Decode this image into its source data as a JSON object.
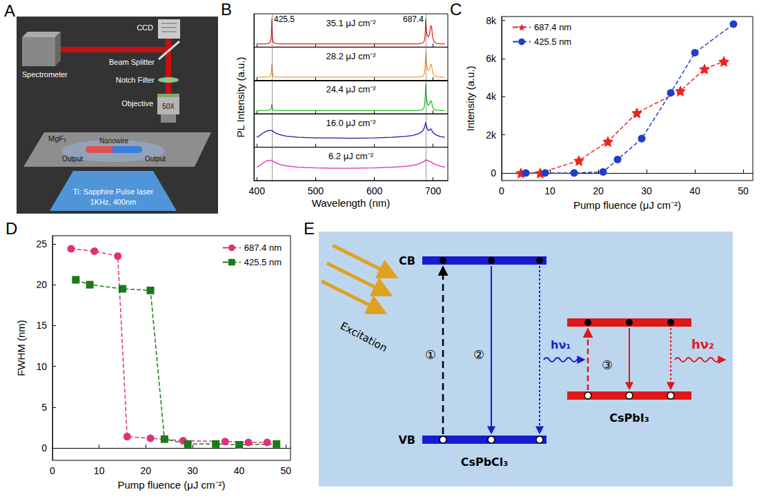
{
  "setup_diagram": {
    "panel_label": "A",
    "labels": {
      "ccd": "CCD",
      "beam_splitter": "Beam Splitter",
      "spectrometer": "Spectrometer",
      "notch_filter": "Notch Filter",
      "objective": "Objective",
      "magnification": "50X",
      "substrate": "MgF₂",
      "nanowire": "Nanowire",
      "output_left": "Output",
      "output_right": "Output",
      "laser": "Ti: Sapphire Pulse laser",
      "laser_specs": "1KHz, 400nm"
    }
  },
  "chart_data": [
    {
      "panel_label": "B",
      "type": "line",
      "x_label": "Wavelength (nm)",
      "y_label": "PL Intensity (a.u.)",
      "xlim": [
        395,
        725
      ],
      "xticks": [
        400,
        500,
        600,
        700
      ],
      "ylim": [
        0,
        1
      ],
      "tick_labels": "x",
      "grid": false,
      "annotations": [
        {
          "text": "425.5",
          "x": 425.5
        },
        {
          "text": "687.4",
          "x": 687.4
        }
      ],
      "x": [
        400,
        405,
        410,
        415,
        420,
        423,
        424.5,
        425.5,
        426.5,
        428,
        432,
        440,
        450,
        470,
        500,
        530,
        560,
        600,
        630,
        650,
        665,
        675,
        682,
        685,
        686.5,
        687.4,
        688.5,
        690,
        692,
        694,
        696,
        697.5,
        699,
        702,
        706,
        712,
        720
      ],
      "series": [
        {
          "name": "35.1 μJ cm⁻²",
          "color": "#e8251f",
          "values": [
            0.1,
            0.1,
            0.1,
            0.1,
            0.11,
            0.15,
            0.3,
            0.85,
            0.3,
            0.14,
            0.11,
            0.1,
            0.1,
            0.1,
            0.1,
            0.1,
            0.1,
            0.1,
            0.1,
            0.1,
            0.1,
            0.1,
            0.12,
            0.18,
            0.4,
            0.85,
            0.5,
            0.35,
            0.3,
            0.4,
            0.65,
            0.6,
            0.3,
            0.15,
            0.11,
            0.1,
            0.1
          ]
        },
        {
          "name": "28.2 μJ cm⁻²",
          "color": "#f0a030",
          "values": [
            0.1,
            0.1,
            0.1,
            0.1,
            0.11,
            0.13,
            0.22,
            0.5,
            0.22,
            0.12,
            0.1,
            0.1,
            0.1,
            0.1,
            0.1,
            0.1,
            0.1,
            0.1,
            0.1,
            0.1,
            0.1,
            0.1,
            0.12,
            0.2,
            0.45,
            0.85,
            0.55,
            0.35,
            0.3,
            0.35,
            0.5,
            0.45,
            0.25,
            0.14,
            0.11,
            0.1,
            0.1
          ]
        },
        {
          "name": "24.4 μJ cm⁻²",
          "color": "#2ec02e",
          "values": [
            0.1,
            0.1,
            0.1,
            0.1,
            0.11,
            0.12,
            0.18,
            0.3,
            0.16,
            0.11,
            0.1,
            0.1,
            0.1,
            0.1,
            0.1,
            0.1,
            0.1,
            0.1,
            0.1,
            0.1,
            0.1,
            0.1,
            0.12,
            0.2,
            0.5,
            0.9,
            0.55,
            0.3,
            0.25,
            0.3,
            0.4,
            0.35,
            0.2,
            0.13,
            0.11,
            0.1,
            0.1
          ]
        },
        {
          "name": "16.0 μJ cm⁻²",
          "color": "#1a1aa8",
          "values": [
            0.3,
            0.35,
            0.42,
            0.47,
            0.5,
            0.5,
            0.5,
            0.5,
            0.49,
            0.47,
            0.42,
            0.37,
            0.33,
            0.3,
            0.28,
            0.28,
            0.27,
            0.28,
            0.3,
            0.32,
            0.35,
            0.4,
            0.48,
            0.58,
            0.68,
            0.75,
            0.65,
            0.55,
            0.5,
            0.52,
            0.55,
            0.52,
            0.45,
            0.4,
            0.36,
            0.32,
            0.3
          ]
        },
        {
          "name": "6.2 μJ cm⁻²",
          "color": "#e020c0",
          "values": [
            0.4,
            0.45,
            0.52,
            0.58,
            0.6,
            0.6,
            0.6,
            0.6,
            0.59,
            0.57,
            0.53,
            0.48,
            0.44,
            0.4,
            0.38,
            0.37,
            0.37,
            0.38,
            0.4,
            0.42,
            0.45,
            0.5,
            0.55,
            0.58,
            0.6,
            0.62,
            0.62,
            0.6,
            0.58,
            0.58,
            0.57,
            0.55,
            0.52,
            0.5,
            0.47,
            0.43,
            0.4
          ]
        }
      ]
    },
    {
      "panel_label": "C",
      "type": "line",
      "x_label": "Pump fluence (μJ cm⁻²)",
      "y_label": "Intensity (a.u.)",
      "xlim": [
        0,
        52
      ],
      "xticks": [
        0,
        10,
        20,
        30,
        40,
        50
      ],
      "ylim": [
        -400,
        8200
      ],
      "yticks": [
        0,
        {
          "value": 2000,
          "label": "2k"
        },
        {
          "value": 4000,
          "label": "4k"
        },
        {
          "value": 6000,
          "label": "6k"
        },
        {
          "value": 8000,
          "label": "8k"
        }
      ],
      "grid": false,
      "legend": "upper left",
      "series": [
        {
          "name": "687.4 nm",
          "color": "#e8251f",
          "marker": "star",
          "line_style": "dashed",
          "x": [
            4,
            8,
            16,
            22,
            28,
            37,
            42,
            46
          ],
          "values": [
            0,
            0,
            650,
            1650,
            3150,
            4300,
            5450,
            5850
          ]
        },
        {
          "name": "425.5 nm",
          "color": "#1f3fc8",
          "marker": "circle",
          "line_style": "dashed",
          "x": [
            5,
            9,
            15,
            21,
            24,
            29,
            35,
            40,
            48
          ],
          "values": [
            0,
            0,
            0,
            50,
            700,
            1800,
            4200,
            6300,
            7800
          ]
        }
      ]
    },
    {
      "panel_label": "D",
      "type": "line",
      "x_label": "Pump fluence (μJ cm⁻²)",
      "y_label": "FWHM (nm)",
      "xlim": [
        0,
        51
      ],
      "xticks": [
        0,
        10,
        20,
        30,
        40,
        50
      ],
      "ylim": [
        -1.5,
        26
      ],
      "yticks": [
        0,
        5,
        10,
        15,
        20,
        25
      ],
      "grid": false,
      "legend": "upper right",
      "series": [
        {
          "name": "687.4 nm",
          "color": "#e0307a",
          "marker": "circle",
          "line_style": "dashed",
          "x": [
            4,
            9,
            14,
            16,
            21,
            28,
            37,
            42,
            46
          ],
          "values": [
            24.4,
            24.1,
            23.5,
            1.4,
            1.2,
            0.9,
            0.8,
            0.7,
            0.7
          ]
        },
        {
          "name": "425.5 nm",
          "color": "#1a7a1a",
          "marker": "square",
          "line_style": "dashed",
          "x": [
            5,
            8,
            15,
            21,
            24,
            29,
            35,
            40,
            48
          ],
          "values": [
            20.6,
            20.0,
            19.5,
            19.3,
            1.1,
            0.5,
            0.5,
            0.4,
            0.5
          ]
        }
      ]
    }
  ],
  "energy_diagram": {
    "panel_label": "E",
    "excitation": "Excitation",
    "cb": "CB",
    "vb": "VB",
    "left_material": "CsPbCl₃",
    "right_material": "CsPbI₃",
    "steps": [
      "①",
      "②",
      "③"
    ],
    "photon_1": "hν₁",
    "photon_2": "hν₂"
  }
}
